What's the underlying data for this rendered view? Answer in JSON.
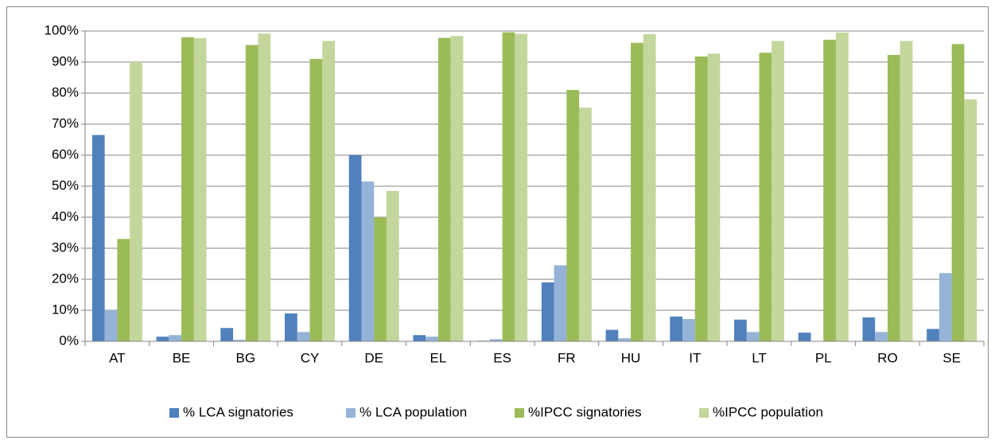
{
  "chart_data": {
    "type": "bar",
    "categories": [
      "AT",
      "BE",
      "BG",
      "CY",
      "DE",
      "EL",
      "ES",
      "FR",
      "HU",
      "IT",
      "LT",
      "PL",
      "RO",
      "SE"
    ],
    "series": [
      {
        "name": "% LCA signatories",
        "color": "#4f81bd",
        "values": [
          66.5,
          1.5,
          4.3,
          9,
          60,
          2,
          0.2,
          19,
          3.7,
          8,
          7,
          2.8,
          7.7,
          4
        ]
      },
      {
        "name": "% LCA population",
        "color": "#95b3d7",
        "values": [
          10,
          2,
          0.5,
          3,
          51.5,
          1.5,
          0.7,
          24.5,
          1,
          7.2,
          3,
          0,
          3,
          22
        ]
      },
      {
        "name": "%IPCC signatories",
        "color": "#9bbb59",
        "values": [
          33,
          98,
          95.5,
          91,
          40,
          97.8,
          99.6,
          81,
          96.2,
          91.8,
          93,
          97.2,
          92.3,
          95.8
        ]
      },
      {
        "name": "%IPCC population",
        "color": "#c3d69b",
        "values": [
          90,
          97.7,
          99.2,
          96.8,
          48.5,
          98.4,
          99.1,
          75.3,
          99,
          92.7,
          96.8,
          99.5,
          96.8,
          78
        ]
      }
    ],
    "ylim": [
      0,
      100
    ],
    "yticks": [
      {
        "value": 0,
        "label": "0%"
      },
      {
        "value": 10,
        "label": "10%"
      },
      {
        "value": 20,
        "label": "20%"
      },
      {
        "value": 30,
        "label": "30%"
      },
      {
        "value": 40,
        "label": "40%"
      },
      {
        "value": 50,
        "label": "50%"
      },
      {
        "value": 60,
        "label": "60%"
      },
      {
        "value": 70,
        "label": "70%"
      },
      {
        "value": 80,
        "label": "80%"
      },
      {
        "value": 90,
        "label": "90%"
      },
      {
        "value": 100,
        "label": "100%"
      }
    ],
    "grid": true,
    "legend": "bottom"
  }
}
